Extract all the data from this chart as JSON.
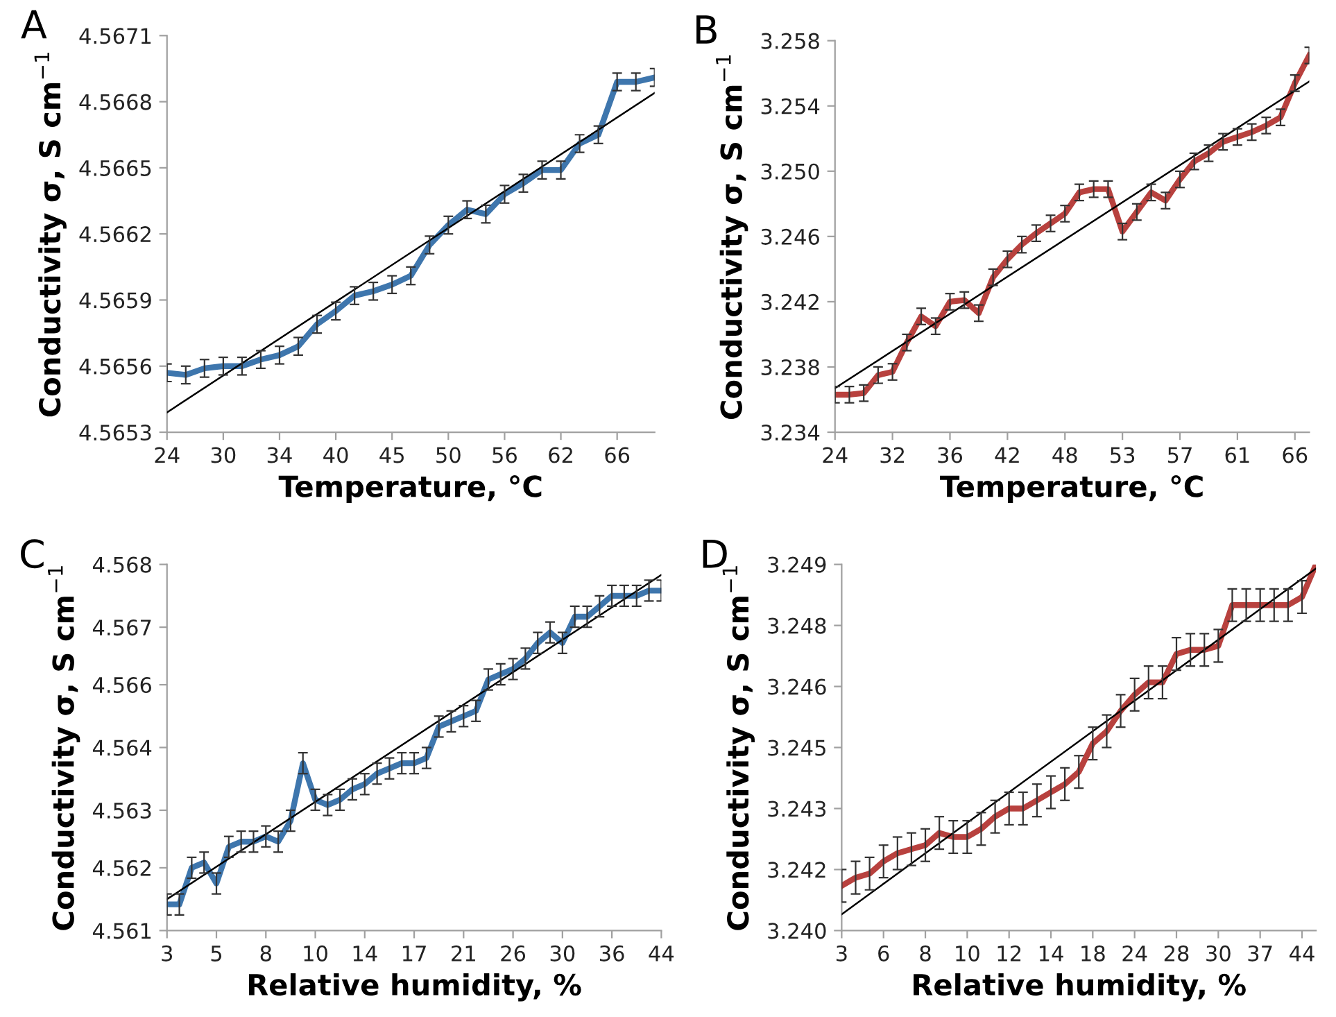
{
  "chart_data": [
    {
      "type": "line",
      "title": "A",
      "xlabel": "Temperature, °C",
      "ylabel": "Conductivity σ, S cm$^{−1}$",
      "categories": [
        "24",
        null,
        null,
        "30",
        null,
        null,
        "34",
        null,
        null,
        "40",
        null,
        null,
        "45",
        null,
        null,
        "50",
        null,
        null,
        "56",
        null,
        null,
        "62",
        null,
        null,
        "66",
        null,
        null
      ],
      "ylim": [
        4.5653,
        4.5671
      ],
      "yticks": [
        4.5653,
        4.5656,
        4.5659,
        4.5662,
        4.5665,
        4.5668,
        4.5671
      ],
      "series": [
        {
          "color": "#3e76ad",
          "values": [
            4.56557,
            4.56556,
            4.56559,
            4.5656,
            4.5656,
            4.56563,
            4.56565,
            4.56569,
            4.56579,
            4.56585,
            4.56592,
            4.56594,
            4.56597,
            4.56601,
            4.56615,
            4.56624,
            4.56631,
            4.56629,
            4.56638,
            4.56643,
            4.56649,
            4.56649,
            4.56661,
            4.56665,
            4.56689,
            4.56689,
            4.56691
          ],
          "errors": [
            4e-05,
            4e-05,
            4e-05,
            4e-05,
            4e-05,
            4e-05,
            4e-05,
            4e-05,
            4e-05,
            4e-05,
            4e-05,
            4e-05,
            4e-05,
            4e-05,
            4e-05,
            4e-05,
            4e-05,
            4e-05,
            4e-05,
            4e-05,
            4e-05,
            4e-05,
            4e-05,
            4e-05,
            4e-05,
            4e-05,
            4e-05
          ]
        },
        {
          "type": "line",
          "color": "#000000",
          "values": [
            4.56539,
            null,
            null,
            null,
            null,
            null,
            null,
            null,
            null,
            null,
            null,
            null,
            null,
            null,
            null,
            null,
            null,
            null,
            null,
            null,
            null,
            null,
            null,
            null,
            null,
            null,
            4.56684
          ]
        }
      ]
    },
    {
      "type": "line",
      "title": "B",
      "xlabel": "Temperature, °C",
      "ylabel": "Conductivity σ, S cm$^{−1}$",
      "categories": [
        "24",
        null,
        null,
        null,
        "32",
        null,
        null,
        null,
        "36",
        null,
        null,
        null,
        "42",
        null,
        null,
        null,
        "48",
        null,
        null,
        null,
        "53",
        null,
        null,
        null,
        "57",
        null,
        null,
        null,
        "61",
        null,
        null,
        null,
        "66",
        null
      ],
      "ylim": [
        3.234,
        3.258
      ],
      "yticks": [
        3.234,
        3.238,
        3.242,
        3.246,
        {
          "value": 3.25,
          "label": "3.250"
        },
        3.254,
        3.258
      ],
      "series": [
        {
          "color": "#b8413e",
          "values": [
            3.2363,
            3.2363,
            3.2364,
            3.2375,
            3.2377,
            3.2395,
            3.2411,
            3.2405,
            3.242,
            3.2421,
            3.2413,
            3.2435,
            3.2446,
            3.2455,
            3.2462,
            3.2468,
            3.2474,
            3.2487,
            3.2489,
            3.2489,
            3.2463,
            3.2475,
            3.2487,
            3.2482,
            3.2495,
            3.2506,
            3.2511,
            3.2518,
            3.2521,
            3.2524,
            3.2528,
            3.2533,
            3.2554,
            3.2571
          ],
          "errors": [
            0.0005,
            0.0005,
            0.0005,
            0.0005,
            0.0005,
            0.0005,
            0.0005,
            0.0005,
            0.0005,
            0.0005,
            0.0005,
            0.0005,
            0.0005,
            0.0005,
            0.0005,
            0.0005,
            0.0005,
            0.0005,
            0.0005,
            0.0005,
            0.0005,
            0.0005,
            0.0005,
            0.0005,
            0.0005,
            0.0005,
            0.0005,
            0.0005,
            0.0005,
            0.0005,
            0.0005,
            0.0005,
            0.0005,
            0.0005
          ]
        },
        {
          "type": "line",
          "color": "#000000",
          "values": [
            3.2367,
            null,
            null,
            null,
            null,
            null,
            null,
            null,
            null,
            null,
            null,
            null,
            null,
            null,
            null,
            null,
            null,
            null,
            null,
            null,
            null,
            null,
            null,
            null,
            null,
            null,
            null,
            null,
            null,
            null,
            null,
            null,
            null,
            3.2555
          ]
        }
      ]
    },
    {
      "type": "line",
      "title": "C",
      "xlabel": "Relative humidity, %",
      "ylabel": "Conductivity σ, S cm$^{−1}$",
      "categories": [
        "3",
        null,
        null,
        null,
        "5",
        null,
        null,
        null,
        "8",
        null,
        null,
        null,
        "10",
        null,
        null,
        null,
        "14",
        null,
        null,
        null,
        "17",
        null,
        null,
        null,
        "21",
        null,
        null,
        null,
        "26",
        null,
        null,
        null,
        "30",
        null,
        null,
        null,
        "36",
        null,
        null,
        null,
        "44"
      ],
      "ylim": [
        4.561,
        4.568
      ],
      "yticks": [
        4.561,
        {
          "value": 4.5622,
          "label": "4.562"
        },
        {
          "value": 4.5633,
          "label": "4.563"
        },
        {
          "value": 4.5645,
          "label": "4.564"
        },
        {
          "value": 4.5657,
          "label": "4.566"
        },
        {
          "value": 4.5668,
          "label": "4.567"
        },
        4.568
      ],
      "series": [
        {
          "color": "#3e76ad",
          "values": [
            4.5615,
            4.5615,
            4.5622,
            4.5623,
            4.5619,
            4.5626,
            4.5627,
            4.5627,
            4.5628,
            4.5627,
            4.5631,
            4.5642,
            4.5635,
            4.5634,
            4.5635,
            4.5637,
            4.5638,
            4.564,
            4.5641,
            4.5642,
            4.5642,
            4.5643,
            4.5649,
            4.565,
            4.5651,
            4.5652,
            4.5658,
            4.5659,
            4.566,
            4.5662,
            4.5665,
            4.5667,
            4.5665,
            4.567,
            4.567,
            4.5672,
            4.5674,
            4.5674,
            4.5674,
            4.5675,
            4.5675
          ],
          "errors": [
            0.0002,
            0.0002,
            0.0002,
            0.0002,
            0.0002,
            0.0002,
            0.0002,
            0.0002,
            0.0002,
            0.0002,
            0.0002,
            0.0002,
            0.0002,
            0.0002,
            0.0002,
            0.0002,
            0.0002,
            0.0002,
            0.0002,
            0.0002,
            0.0002,
            0.0002,
            0.0002,
            0.0002,
            0.0002,
            0.0002,
            0.0002,
            0.0002,
            0.0002,
            0.0002,
            0.0002,
            0.0002,
            0.0002,
            0.0002,
            0.0002,
            0.0002,
            0.0002,
            0.0002,
            0.0002,
            0.0002,
            0.0002
          ]
        },
        {
          "type": "line",
          "color": "#000000",
          "values": [
            4.5616,
            null,
            null,
            null,
            null,
            null,
            null,
            null,
            null,
            null,
            null,
            null,
            null,
            null,
            null,
            null,
            null,
            null,
            null,
            null,
            null,
            null,
            null,
            null,
            null,
            null,
            null,
            null,
            null,
            null,
            null,
            null,
            null,
            null,
            null,
            null,
            null,
            null,
            null,
            null,
            4.5678
          ]
        }
      ]
    },
    {
      "type": "line",
      "title": "D",
      "xlabel": "Relative humidity, %",
      "ylabel": "Conductivity σ, S cm$^{−1}$",
      "categories": [
        "3",
        null,
        null,
        "6",
        null,
        null,
        "8",
        null,
        null,
        "10",
        null,
        null,
        "12",
        null,
        null,
        "14",
        null,
        null,
        "18",
        null,
        null,
        "24",
        null,
        null,
        "28",
        null,
        null,
        "30",
        null,
        null,
        "37",
        null,
        null,
        "44",
        null
      ],
      "ylim": [
        3.24,
        3.249
      ],
      "yticks": [
        {
          "value": 3.24,
          "label": "3.240"
        },
        {
          "value": 3.2415,
          "label": "3.242"
        },
        3.243,
        {
          "value": 3.2445,
          "label": "3.245"
        },
        3.246,
        {
          "value": 3.2475,
          "label": "3.248"
        },
        3.249
      ],
      "series": [
        {
          "color": "#b8413e",
          "values": [
            3.2411,
            3.2413,
            3.2414,
            3.2417,
            3.2419,
            3.242,
            3.2421,
            3.2424,
            3.2423,
            3.2423,
            3.2425,
            3.2428,
            3.243,
            3.243,
            3.2432,
            3.2434,
            3.2436,
            3.2439,
            3.2446,
            3.2449,
            3.2454,
            3.2458,
            3.2461,
            3.2461,
            3.2468,
            3.2469,
            3.2469,
            3.247,
            3.248,
            3.248,
            3.248,
            3.248,
            3.248,
            3.2482,
            3.249
          ],
          "errors": [
            0.0004,
            0.0004,
            0.0004,
            0.0004,
            0.0004,
            0.0004,
            0.0004,
            0.0004,
            0.0004,
            0.0004,
            0.0004,
            0.0004,
            0.0004,
            0.0004,
            0.0004,
            0.0004,
            0.0004,
            0.0004,
            0.0004,
            0.0004,
            0.0004,
            0.0004,
            0.0004,
            0.0004,
            0.0004,
            0.0004,
            0.0004,
            0.0004,
            0.0004,
            0.0004,
            0.0004,
            0.0004,
            0.0004,
            0.0004,
            null
          ]
        },
        {
          "type": "line",
          "color": "#000000",
          "values": [
            3.2404,
            null,
            null,
            null,
            null,
            null,
            null,
            null,
            null,
            null,
            null,
            null,
            null,
            null,
            null,
            null,
            null,
            null,
            null,
            null,
            null,
            null,
            null,
            null,
            null,
            null,
            null,
            null,
            null,
            null,
            null,
            null,
            null,
            null,
            3.2489
          ]
        }
      ]
    }
  ]
}
